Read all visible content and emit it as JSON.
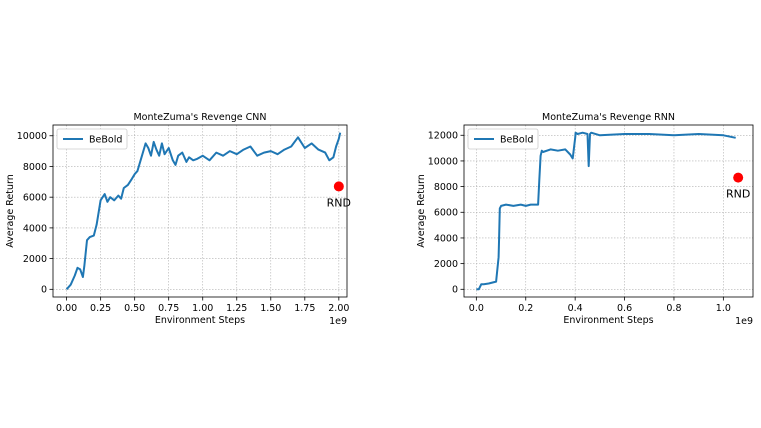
{
  "chart_data": [
    {
      "type": "line",
      "title": "MonteZuma's Revenge CNN",
      "xlabel": "Environment Steps",
      "ylabel": "Average Return",
      "x_offset_label": "1e9",
      "xlim": [
        -0.1,
        2.06
      ],
      "ylim": [
        -500,
        10700
      ],
      "xticks": [
        0.0,
        0.25,
        0.5,
        0.75,
        1.0,
        1.25,
        1.5,
        1.75,
        2.0
      ],
      "xtick_labels": [
        "0.00",
        "0.25",
        "0.50",
        "0.75",
        "1.00",
        "1.25",
        "1.50",
        "1.75",
        "2.00"
      ],
      "yticks": [
        0,
        2000,
        4000,
        6000,
        8000,
        10000
      ],
      "ytick_labels": [
        "0",
        "2000",
        "4000",
        "6000",
        "8000",
        "10000"
      ],
      "grid": true,
      "legend": "top-left",
      "series": [
        {
          "name": "BeBold",
          "color": "#1f77b4",
          "x": [
            0.0,
            0.03,
            0.06,
            0.08,
            0.1,
            0.12,
            0.13,
            0.15,
            0.17,
            0.2,
            0.22,
            0.25,
            0.28,
            0.3,
            0.32,
            0.35,
            0.38,
            0.4,
            0.42,
            0.45,
            0.48,
            0.5,
            0.52,
            0.55,
            0.58,
            0.6,
            0.62,
            0.64,
            0.66,
            0.68,
            0.7,
            0.72,
            0.75,
            0.78,
            0.8,
            0.82,
            0.85,
            0.88,
            0.9,
            0.93,
            0.96,
            1.0,
            1.05,
            1.1,
            1.15,
            1.2,
            1.25,
            1.3,
            1.35,
            1.4,
            1.45,
            1.5,
            1.55,
            1.6,
            1.65,
            1.7,
            1.75,
            1.8,
            1.85,
            1.9,
            1.93,
            1.96,
            1.98,
            2.0,
            2.01
          ],
          "y": [
            0,
            300,
            900,
            1400,
            1300,
            800,
            1500,
            3200,
            3400,
            3500,
            4200,
            5800,
            6200,
            5700,
            6000,
            5800,
            6100,
            5900,
            6600,
            6800,
            7200,
            7500,
            7700,
            8600,
            9500,
            9200,
            8700,
            9600,
            9100,
            8700,
            9500,
            8800,
            9200,
            8400,
            8100,
            8700,
            8900,
            8300,
            8600,
            8400,
            8500,
            8700,
            8400,
            8900,
            8700,
            9000,
            8800,
            9100,
            9300,
            8700,
            8900,
            9000,
            8800,
            9100,
            9300,
            9900,
            9200,
            9500,
            9100,
            8900,
            8400,
            8600,
            9300,
            9800,
            10200
          ]
        }
      ],
      "annotations": [
        {
          "label": "RND",
          "x": 2.0,
          "y": 6700,
          "color": "#ff0000"
        }
      ]
    },
    {
      "type": "line",
      "title": "MonteZuma's Revenge RNN",
      "xlabel": "Environment Steps",
      "ylabel": "Average Return",
      "x_offset_label": "1e9",
      "xlim": [
        -0.05,
        1.12
      ],
      "ylim": [
        -600,
        12800
      ],
      "xticks": [
        0.0,
        0.2,
        0.4,
        0.6,
        0.8,
        1.0
      ],
      "xtick_labels": [
        "0.0",
        "0.2",
        "0.4",
        "0.6",
        "0.8",
        "1.0"
      ],
      "yticks": [
        0,
        2000,
        4000,
        6000,
        8000,
        10000,
        12000
      ],
      "ytick_labels": [
        "0",
        "2000",
        "4000",
        "6000",
        "8000",
        "10000",
        "12000"
      ],
      "grid": true,
      "legend": "top-left",
      "series": [
        {
          "name": "BeBold",
          "color": "#1f77b4",
          "x": [
            0.0,
            0.01,
            0.02,
            0.03,
            0.05,
            0.08,
            0.09,
            0.092,
            0.095,
            0.1,
            0.12,
            0.15,
            0.18,
            0.2,
            0.22,
            0.25,
            0.255,
            0.26,
            0.265,
            0.27,
            0.3,
            0.33,
            0.36,
            0.38,
            0.39,
            0.4,
            0.402,
            0.41,
            0.43,
            0.45,
            0.455,
            0.46,
            0.465,
            0.5,
            0.6,
            0.7,
            0.8,
            0.9,
            1.0,
            1.05
          ],
          "y": [
            0,
            0,
            400,
            400,
            450,
            600,
            2500,
            4000,
            6300,
            6500,
            6600,
            6500,
            6600,
            6500,
            6600,
            6600,
            8500,
            10400,
            10800,
            10700,
            10900,
            10800,
            10900,
            10500,
            10200,
            11800,
            12200,
            12100,
            12200,
            12100,
            9600,
            12100,
            12200,
            12000,
            12100,
            12100,
            12000,
            12100,
            12000,
            11800
          ]
        }
      ],
      "annotations": [
        {
          "label": "RND",
          "x": 1.06,
          "y": 8700,
          "color": "#ff0000"
        }
      ]
    }
  ]
}
